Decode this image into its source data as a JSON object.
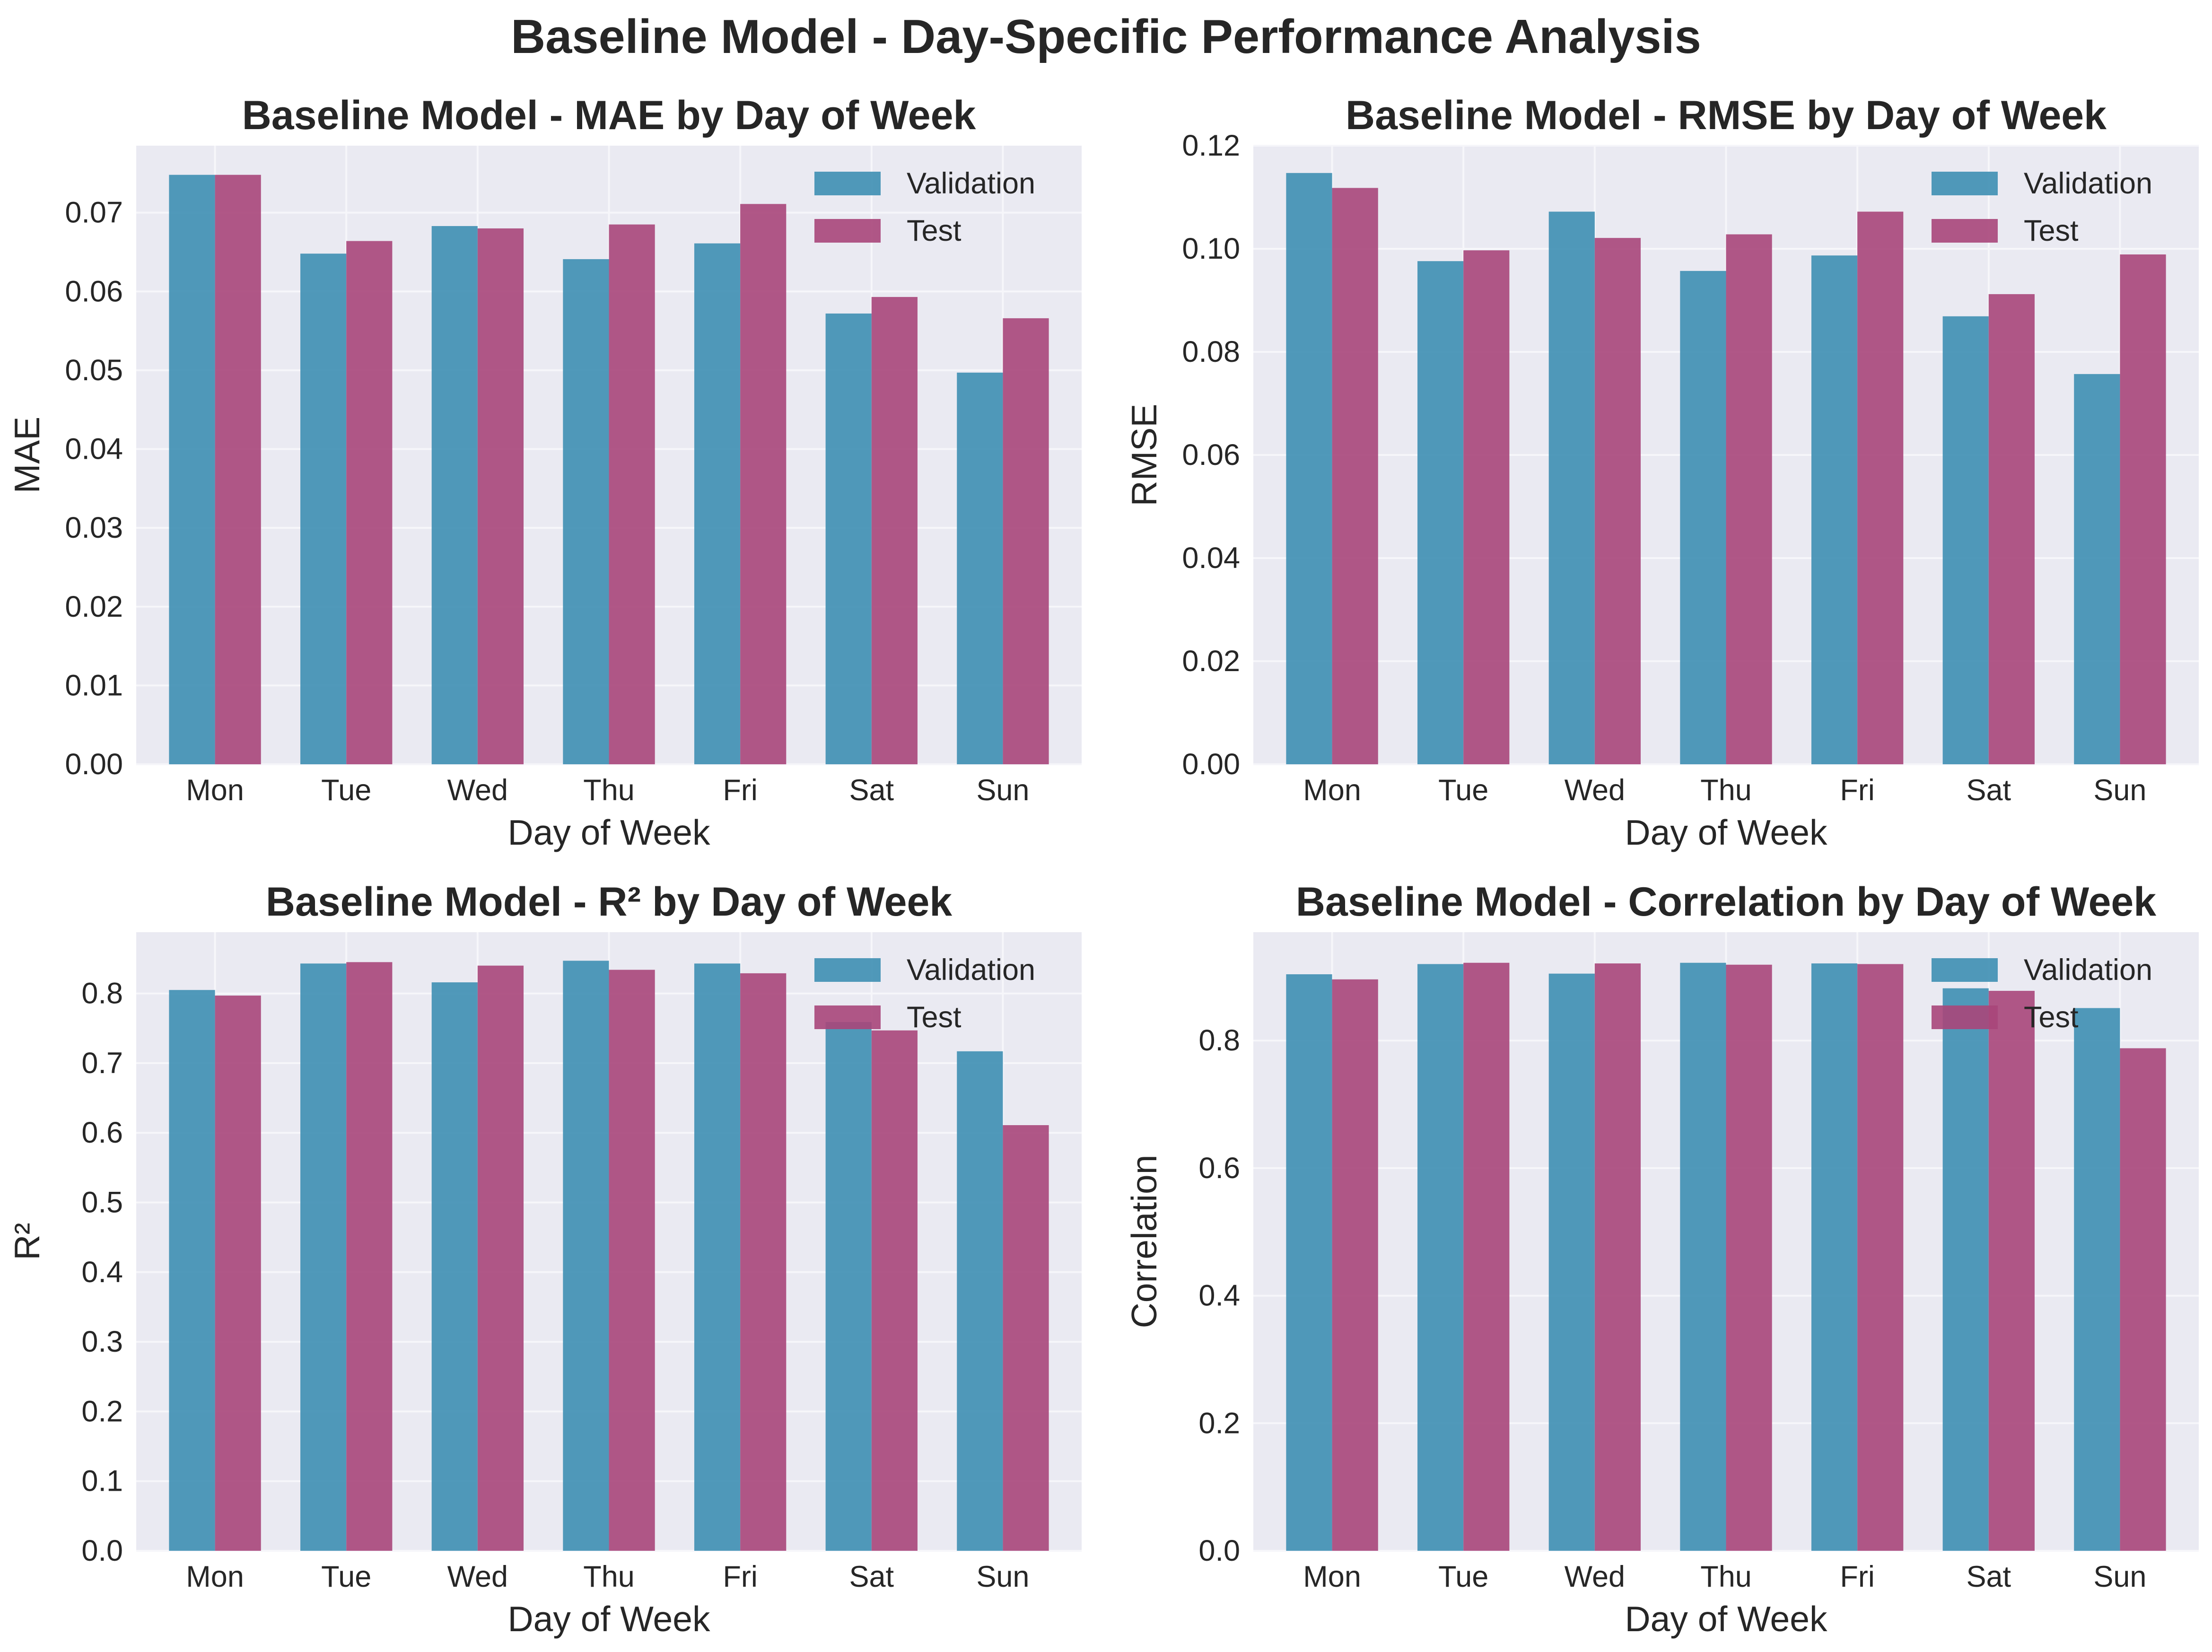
{
  "suptitle": "Baseline Model - Day-Specific Performance Analysis",
  "colors": {
    "validation": "#3e8fb3",
    "test": "#a8467a",
    "panel_bg": "#eaeaf2",
    "grid": "#f6f6fa"
  },
  "chart_data": [
    {
      "type": "bar",
      "title": "Baseline Model - MAE by Day of Week",
      "xlabel": "Day of Week",
      "ylabel": "MAE",
      "categories": [
        "Mon",
        "Tue",
        "Wed",
        "Thu",
        "Fri",
        "Sat",
        "Sun"
      ],
      "ylim": [
        0,
        0.0785
      ],
      "yticks": [
        "0.00",
        "0.01",
        "0.02",
        "0.03",
        "0.04",
        "0.05",
        "0.06",
        "0.07"
      ],
      "ytick_values": [
        0,
        0.01,
        0.02,
        0.03,
        0.04,
        0.05,
        0.06,
        0.07
      ],
      "legend_position": "top-right",
      "grid": true,
      "series": [
        {
          "name": "Validation",
          "values": [
            0.0748,
            0.0648,
            0.0683,
            0.0641,
            0.0661,
            0.0572,
            0.0497
          ]
        },
        {
          "name": "Test",
          "values": [
            0.0748,
            0.0664,
            0.068,
            0.0685,
            0.0711,
            0.0593,
            0.0566
          ]
        }
      ]
    },
    {
      "type": "bar",
      "title": "Baseline Model - RMSE by Day of Week",
      "xlabel": "Day of Week",
      "ylabel": "RMSE",
      "categories": [
        "Mon",
        "Tue",
        "Wed",
        "Thu",
        "Fri",
        "Sat",
        "Sun"
      ],
      "ylim": [
        0,
        0.12
      ],
      "yticks": [
        "0.00",
        "0.02",
        "0.04",
        "0.06",
        "0.08",
        "0.10",
        "0.12"
      ],
      "ytick_values": [
        0,
        0.02,
        0.04,
        0.06,
        0.08,
        0.1,
        0.12
      ],
      "legend_position": "top-right",
      "grid": true,
      "series": [
        {
          "name": "Validation",
          "values": [
            0.1147,
            0.0976,
            0.1072,
            0.0957,
            0.0987,
            0.0869,
            0.0757
          ]
        },
        {
          "name": "Test",
          "values": [
            0.1118,
            0.0997,
            0.1021,
            0.1028,
            0.1072,
            0.0912,
            0.0989
          ]
        }
      ]
    },
    {
      "type": "bar",
      "title": "Baseline Model - R² by Day of Week",
      "xlabel": "Day of Week",
      "ylabel": "R²",
      "categories": [
        "Mon",
        "Tue",
        "Wed",
        "Thu",
        "Fri",
        "Sat",
        "Sun"
      ],
      "ylim": [
        0,
        0.888
      ],
      "yticks": [
        "0.0",
        "0.1",
        "0.2",
        "0.3",
        "0.4",
        "0.5",
        "0.6",
        "0.7",
        "0.8"
      ],
      "ytick_values": [
        0,
        0.1,
        0.2,
        0.3,
        0.4,
        0.5,
        0.6,
        0.7,
        0.8
      ],
      "legend_position": "top-right",
      "grid": true,
      "series": [
        {
          "name": "Validation",
          "values": [
            0.805,
            0.843,
            0.816,
            0.847,
            0.843,
            0.759,
            0.717
          ]
        },
        {
          "name": "Test",
          "values": [
            0.797,
            0.845,
            0.84,
            0.834,
            0.829,
            0.747,
            0.611
          ]
        }
      ]
    },
    {
      "type": "bar",
      "title": "Baseline Model - Correlation by Day of Week",
      "xlabel": "Day of Week",
      "ylabel": "Correlation",
      "categories": [
        "Mon",
        "Tue",
        "Wed",
        "Thu",
        "Fri",
        "Sat",
        "Sun"
      ],
      "ylim": [
        0,
        0.97
      ],
      "yticks": [
        "0.0",
        "0.2",
        "0.4",
        "0.6",
        "0.8"
      ],
      "ytick_values": [
        0,
        0.2,
        0.4,
        0.6,
        0.8
      ],
      "legend_position": "top-right",
      "grid": true,
      "series": [
        {
          "name": "Validation",
          "values": [
            0.904,
            0.92,
            0.905,
            0.922,
            0.921,
            0.882,
            0.851
          ]
        },
        {
          "name": "Test",
          "values": [
            0.896,
            0.922,
            0.921,
            0.919,
            0.92,
            0.878,
            0.788
          ]
        }
      ]
    }
  ]
}
